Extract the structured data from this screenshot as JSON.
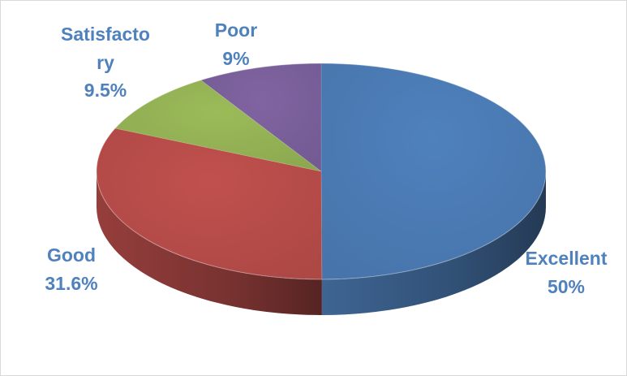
{
  "chart_data": {
    "type": "pie",
    "style": "3d",
    "start": "12 o'clock",
    "direction": "clockwise",
    "categories": [
      "Excellent",
      "Good",
      "Satisfactory",
      "Poor"
    ],
    "values": [
      50,
      31.6,
      9.5,
      9
    ],
    "colors": [
      "#4f81bd",
      "#c0504d",
      "#9bbb59",
      "#8064a2"
    ],
    "label_color": "#4f81bd",
    "labels": [
      {
        "name": "Excellent",
        "value": "50%"
      },
      {
        "name": "Good",
        "value": "31.6%"
      },
      {
        "name_lines": [
          "Satisfacto",
          "ry"
        ],
        "value": "9.5%"
      },
      {
        "name": "Poor",
        "value": "9%"
      }
    ],
    "legend": "none"
  }
}
